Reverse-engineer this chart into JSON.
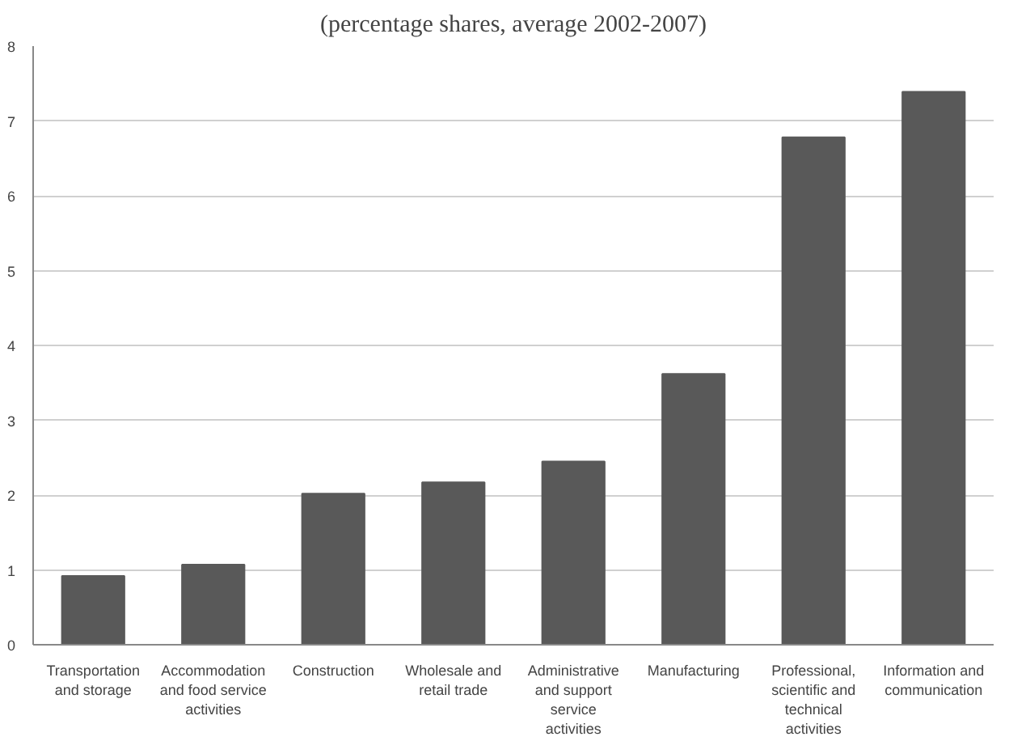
{
  "chart_data": {
    "type": "bar",
    "title": "(percentage shares, average 2002-2007)",
    "categories": [
      "Transportation and storage",
      "Accommodation and food service activities",
      "Construction",
      "Wholesale and retail trade",
      "Administrative and support service activities",
      "Manufacturing",
      "Professional, scientific and technical activities",
      "Information and communication"
    ],
    "values": [
      0.92,
      1.07,
      2.02,
      2.17,
      2.45,
      3.62,
      6.78,
      7.39
    ],
    "color": "#595959",
    "ylim": [
      0,
      8
    ],
    "yticks": [
      0,
      1,
      2,
      3,
      4,
      5,
      6,
      7,
      8
    ],
    "grid": "y"
  }
}
